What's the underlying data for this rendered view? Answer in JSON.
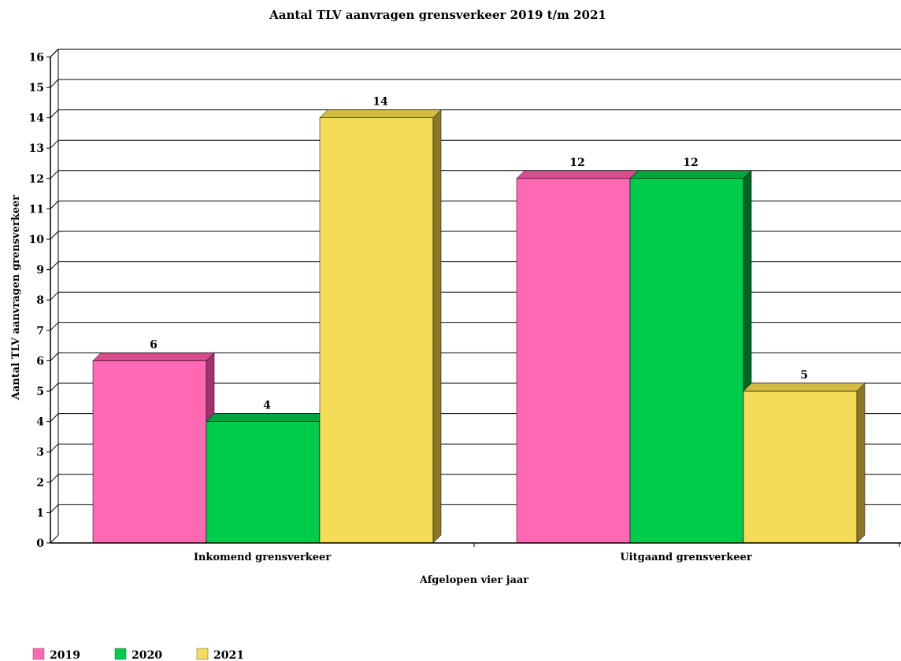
{
  "chart_data": {
    "type": "bar",
    "title": "Aantal TLV aanvragen grensverkeer 2019 t/m 2021",
    "xlabel": "Afgelopen vier jaar",
    "ylabel": "Aantal TLV aanvragen grensverkeer",
    "categories": [
      "Inkomend grensverkeer",
      "Uitgaand grensverkeer"
    ],
    "series": [
      {
        "name": "2019",
        "values": [
          6,
          12
        ],
        "color": "#ff69b4",
        "side": "#a0336f",
        "top": "#d94d8f"
      },
      {
        "name": "2020",
        "values": [
          4,
          12
        ],
        "color": "#00cc4c",
        "side": "#006622",
        "top": "#00a63d"
      },
      {
        "name": "2021",
        "values": [
          14,
          5
        ],
        "color": "#f4dc58",
        "side": "#8a7a28",
        "top": "#d4bc44"
      }
    ],
    "ylim": [
      0,
      16
    ],
    "yticks": [
      0,
      1,
      2,
      3,
      4,
      5,
      6,
      7,
      8,
      9,
      10,
      11,
      12,
      13,
      14,
      15,
      16
    ],
    "grid": true,
    "legend_position": "bottom-left"
  }
}
